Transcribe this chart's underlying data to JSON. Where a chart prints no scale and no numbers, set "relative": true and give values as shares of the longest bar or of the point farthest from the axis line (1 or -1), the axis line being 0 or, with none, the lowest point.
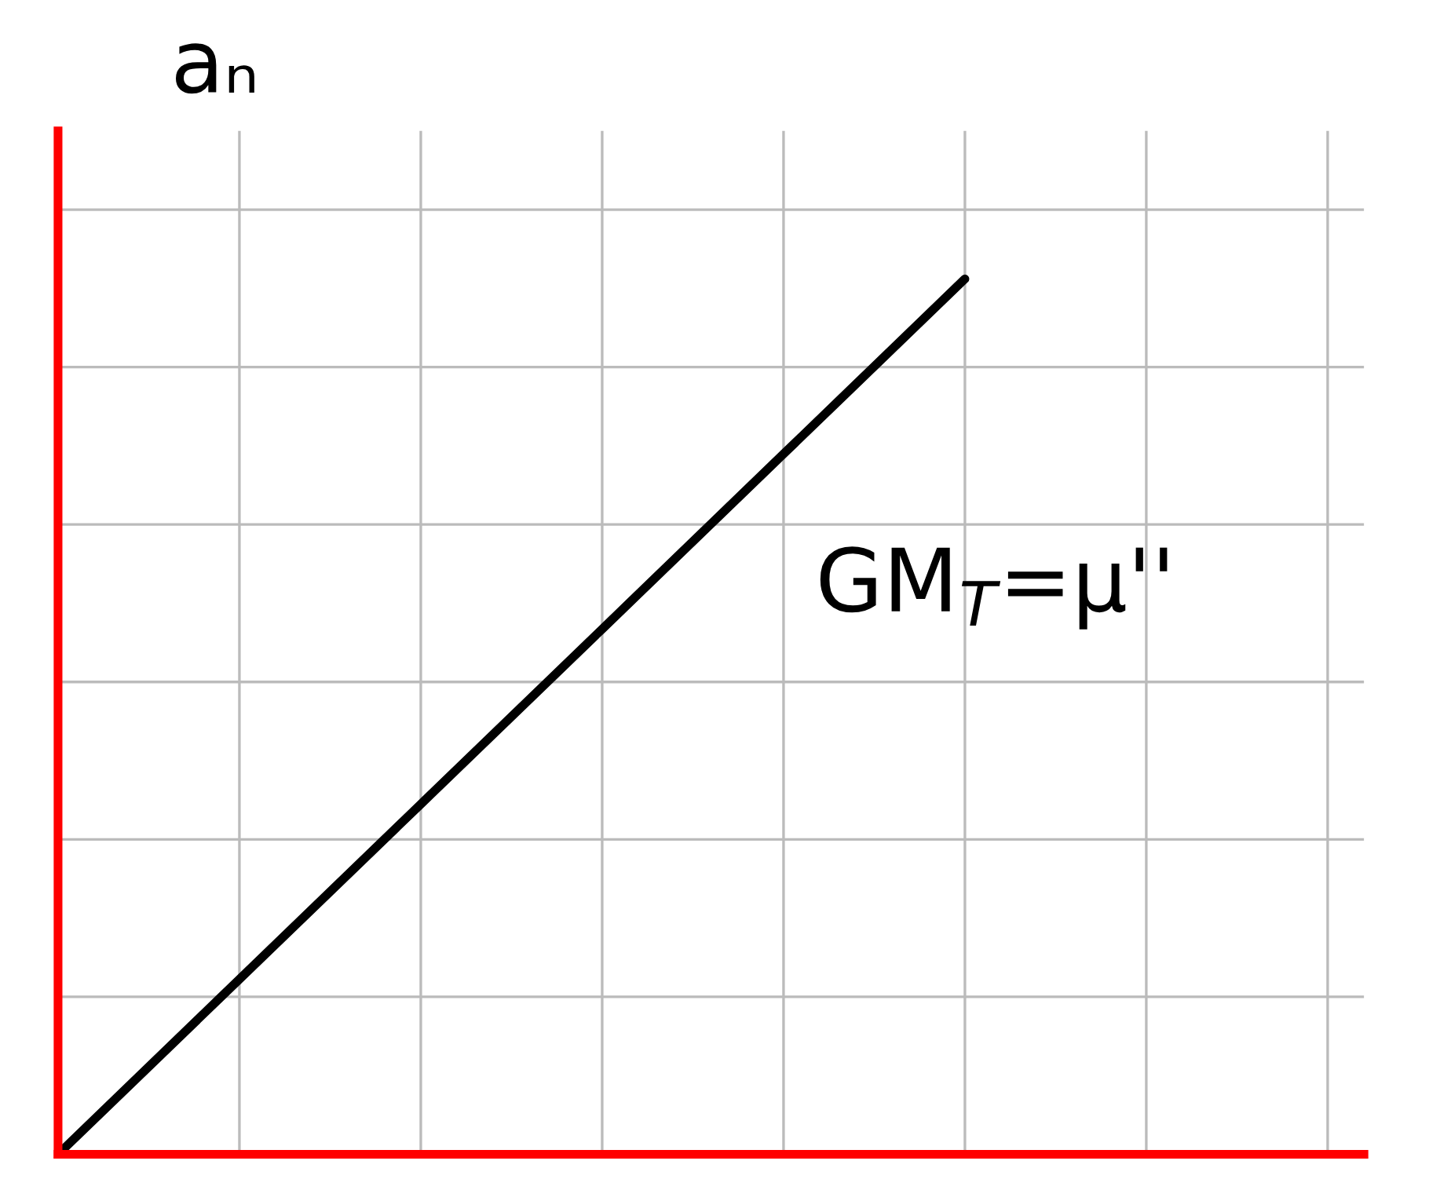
{
  "chart_data": {
    "type": "line",
    "relative": true,
    "ylabel": "aₙ",
    "categories": [
      null,
      null,
      null,
      null,
      null,
      null,
      null,
      null
    ],
    "series": [
      {
        "color": "#000000",
        "values": [
          0,
          0.2,
          0.4,
          0.6,
          0.8,
          1.0,
          null,
          null
        ]
      }
    ],
    "annotations": [
      "GM$_{T}$=μ''"
    ],
    "grid": true,
    "marker": "none",
    "line_style": "solid"
  }
}
